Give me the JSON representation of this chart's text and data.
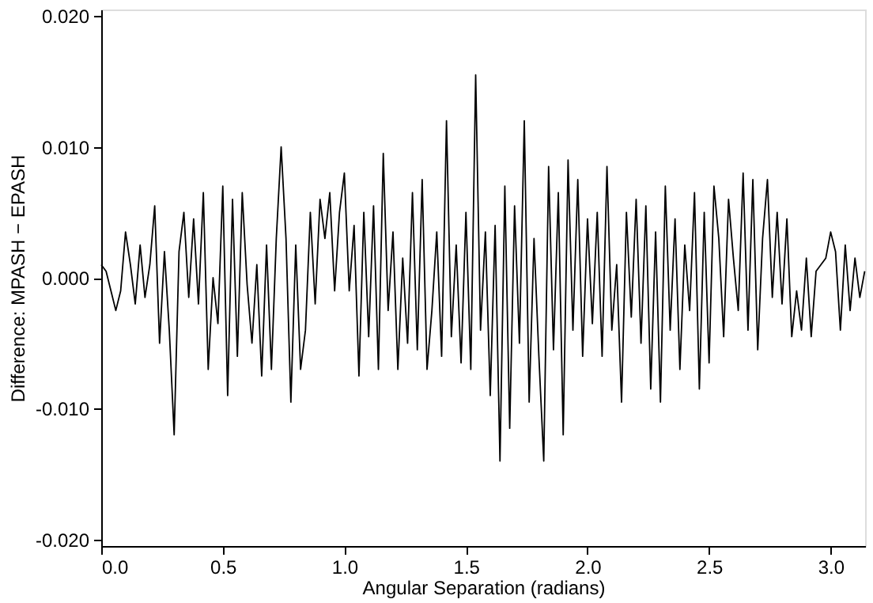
{
  "chart_data": {
    "type": "line",
    "xlabel": "Angular Separation (radians)",
    "ylabel": "Difference: MPASH − EPASH",
    "xlim": [
      0,
      3.1416
    ],
    "ylim": [
      -0.0205,
      0.0205
    ],
    "xticks": [
      {
        "value": 0,
        "label": "0.0"
      },
      {
        "value": 0.5,
        "label": "0.5"
      },
      {
        "value": 1,
        "label": "1.0"
      },
      {
        "value": 1.5,
        "label": "1.5"
      },
      {
        "value": 2,
        "label": "2.0"
      },
      {
        "value": 2.5,
        "label": "2.5"
      },
      {
        "value": 3,
        "label": "3.0"
      }
    ],
    "yticks": [
      {
        "value": -0.02,
        "label": "-0.020"
      },
      {
        "value": -0.01,
        "label": "-0.010"
      },
      {
        "value": 0,
        "label": "0.000"
      },
      {
        "value": 0.01,
        "label": "0.010"
      },
      {
        "value": 0.02,
        "label": "0.020"
      }
    ],
    "grid": false,
    "legend": false,
    "marker": "none",
    "line_style": "solid",
    "series": [
      {
        "color": "#000000",
        "x": [
          0.0,
          0.02,
          0.04,
          0.06,
          0.08,
          0.1,
          0.12,
          0.14,
          0.16,
          0.18,
          0.2,
          0.22,
          0.24,
          0.26,
          0.28,
          0.3,
          0.32,
          0.34,
          0.36,
          0.38,
          0.4,
          0.42,
          0.44,
          0.46,
          0.48,
          0.5,
          0.52,
          0.54,
          0.56,
          0.58,
          0.6,
          0.62,
          0.64,
          0.66,
          0.68,
          0.7,
          0.72,
          0.74,
          0.76,
          0.78,
          0.8,
          0.82,
          0.84,
          0.86,
          0.88,
          0.9,
          0.92,
          0.94,
          0.96,
          0.98,
          1.0,
          1.02,
          1.04,
          1.06,
          1.08,
          1.1,
          1.12,
          1.14,
          1.16,
          1.18,
          1.2,
          1.22,
          1.24,
          1.26,
          1.28,
          1.3,
          1.32,
          1.34,
          1.36,
          1.38,
          1.4,
          1.42,
          1.44,
          1.46,
          1.48,
          1.5,
          1.52,
          1.54,
          1.56,
          1.58,
          1.6,
          1.62,
          1.64,
          1.66,
          1.68,
          1.7,
          1.72,
          1.74,
          1.76,
          1.78,
          1.8,
          1.82,
          1.84,
          1.86,
          1.88,
          1.9,
          1.92,
          1.94,
          1.96,
          1.98,
          2.0,
          2.02,
          2.04,
          2.06,
          2.08,
          2.1,
          2.12,
          2.14,
          2.16,
          2.18,
          2.2,
          2.22,
          2.24,
          2.26,
          2.28,
          2.3,
          2.32,
          2.34,
          2.36,
          2.38,
          2.4,
          2.42,
          2.44,
          2.46,
          2.48,
          2.5,
          2.52,
          2.54,
          2.56,
          2.58,
          2.6,
          2.62,
          2.64,
          2.66,
          2.68,
          2.7,
          2.72,
          2.74,
          2.76,
          2.78,
          2.8,
          2.82,
          2.84,
          2.86,
          2.88,
          2.9,
          2.92,
          2.94,
          2.96,
          2.98,
          3.0,
          3.02,
          3.04,
          3.06,
          3.08,
          3.1,
          3.12,
          3.14
        ],
        "values": [
          0.001,
          0.0005,
          -0.001,
          -0.0025,
          -0.001,
          0.0035,
          0.001,
          -0.002,
          0.0025,
          -0.0015,
          0.001,
          0.0055,
          -0.005,
          0.002,
          -0.004,
          -0.012,
          0.002,
          0.005,
          -0.0015,
          0.0045,
          -0.002,
          0.0065,
          -0.007,
          0.0,
          -0.0035,
          0.007,
          -0.009,
          0.006,
          -0.006,
          0.0065,
          -0.0005,
          -0.005,
          0.001,
          -0.0075,
          0.0025,
          -0.007,
          0.003,
          0.01,
          0.003,
          -0.0095,
          0.0025,
          -0.007,
          -0.004,
          0.005,
          -0.002,
          0.006,
          0.003,
          0.0065,
          -0.001,
          0.005,
          0.008,
          -0.001,
          0.004,
          -0.0075,
          0.005,
          -0.0045,
          0.0055,
          -0.007,
          0.0095,
          -0.0025,
          0.0035,
          -0.007,
          0.0015,
          -0.005,
          0.0065,
          -0.0055,
          0.0075,
          -0.007,
          -0.0025,
          0.0035,
          -0.006,
          0.012,
          -0.0045,
          0.0025,
          -0.0065,
          0.005,
          -0.007,
          0.0155,
          -0.004,
          0.0035,
          -0.009,
          0.004,
          -0.014,
          0.007,
          -0.0115,
          0.0055,
          -0.005,
          0.012,
          -0.0095,
          0.003,
          -0.006,
          -0.014,
          0.0085,
          -0.0055,
          0.0065,
          -0.012,
          0.009,
          -0.004,
          0.0075,
          -0.006,
          0.0045,
          -0.0035,
          0.005,
          -0.006,
          0.0085,
          -0.004,
          0.001,
          -0.0095,
          0.005,
          -0.003,
          0.006,
          -0.005,
          0.0055,
          -0.0085,
          0.0035,
          -0.0095,
          0.007,
          -0.004,
          0.0045,
          -0.007,
          0.0025,
          -0.0025,
          0.0065,
          -0.0085,
          0.005,
          -0.0065,
          0.007,
          0.003,
          -0.0045,
          0.006,
          0.0015,
          -0.0025,
          0.008,
          -0.004,
          0.0075,
          -0.0055,
          0.003,
          0.0075,
          -0.0015,
          0.005,
          -0.002,
          0.0045,
          -0.0045,
          -0.001,
          -0.004,
          0.0015,
          -0.0045,
          0.0005,
          0.001,
          0.0015,
          0.0035,
          0.002,
          -0.004,
          0.0025,
          -0.0025,
          0.0015,
          -0.0015,
          0.0005
        ]
      }
    ]
  }
}
